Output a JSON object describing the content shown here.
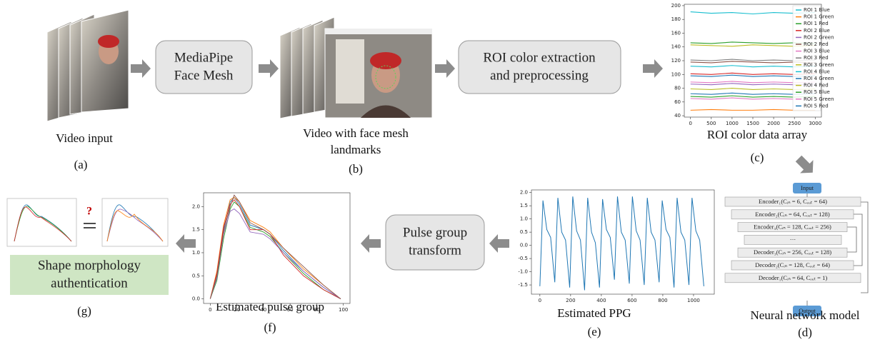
{
  "video_input": {
    "caption": "Video input",
    "label": "(a)"
  },
  "mediapipe_box": {
    "lines": [
      "MediaPipe",
      "Face Mesh"
    ]
  },
  "video_landmarks": {
    "caption": [
      "Video with face mesh",
      "landmarks"
    ],
    "label": "(b)"
  },
  "roi_box": {
    "lines": [
      "ROI color extraction",
      "and preprocessing"
    ]
  },
  "roi_chart": {
    "type": "line",
    "caption": "ROI color data array",
    "label": "(c)",
    "x": [
      0,
      500,
      1000,
      1500,
      2000,
      2500,
      3000
    ],
    "xlim": [
      -150,
      3150
    ],
    "ylim": [
      38,
      202
    ],
    "xticks": [
      0,
      500,
      1000,
      1500,
      2000,
      2500,
      3000
    ],
    "yticks": [
      40,
      60,
      80,
      100,
      120,
      140,
      160,
      180,
      200
    ],
    "legend": "upper right",
    "series": [
      {
        "name": "ROI 1 Blue",
        "color": "#17becf",
        "values": [
          191,
          189,
          190,
          188,
          190,
          189,
          190
        ]
      },
      {
        "name": "ROI 1 Green",
        "color": "#ff7f0e",
        "values": [
          48,
          49,
          48,
          48,
          49,
          48,
          48
        ]
      },
      {
        "name": "ROI 1 Red",
        "color": "#2ca02c",
        "values": [
          146,
          145,
          147,
          146,
          145,
          146,
          145
        ]
      },
      {
        "name": "ROI 2 Blue",
        "color": "#d62728",
        "values": [
          101,
          100,
          102,
          100,
          101,
          100,
          101
        ]
      },
      {
        "name": "ROI 2 Green",
        "color": "#9467bd",
        "values": [
          86,
          85,
          87,
          85,
          86,
          85,
          86
        ]
      },
      {
        "name": "ROI 2 Red",
        "color": "#8c564b",
        "values": [
          118,
          117,
          119,
          118,
          117,
          118,
          117
        ]
      },
      {
        "name": "ROI 3 Blue",
        "color": "#e377c2",
        "values": [
          89,
          88,
          90,
          88,
          89,
          88,
          89
        ]
      },
      {
        "name": "ROI 3 Red",
        "color": "#7f7f7f",
        "values": [
          121,
          120,
          122,
          120,
          121,
          120,
          121
        ]
      },
      {
        "name": "ROI 3 Green",
        "color": "#bcbd22",
        "values": [
          143,
          142,
          141,
          143,
          142,
          141,
          142
        ]
      },
      {
        "name": "ROI 4 Blue",
        "color": "#17becf",
        "values": [
          112,
          111,
          113,
          111,
          112,
          111,
          112
        ]
      },
      {
        "name": "ROI 4 Green",
        "color": "#1f77b4",
        "values": [
          98,
          97,
          99,
          97,
          98,
          97,
          98
        ]
      },
      {
        "name": "ROI 4 Red",
        "color": "#bcbd22",
        "values": [
          79,
          78,
          80,
          78,
          79,
          78,
          79
        ]
      },
      {
        "name": "ROI 5 Blue",
        "color": "#2ca02c",
        "values": [
          68,
          67,
          69,
          67,
          68,
          67,
          68
        ]
      },
      {
        "name": "ROI 5 Green",
        "color": "#e377c2",
        "values": [
          65,
          64,
          66,
          64,
          65,
          64,
          65
        ]
      },
      {
        "name": "ROI 5 Red",
        "color": "#1f77b4",
        "values": [
          72,
          71,
          73,
          71,
          72,
          71,
          72
        ]
      }
    ]
  },
  "network": {
    "caption": "Neural network model",
    "label": "(d)",
    "input": "Input",
    "output": "Output",
    "layers": [
      "Encoder₁(Cᵢₙ = 6, Cₒᵤₜ = 64)",
      "Encoder₂(Cᵢₙ = 64, Cₒᵤₜ = 128)",
      "Encoder₃(Cᵢₙ = 128, Cₒᵤₜ = 256)",
      "···",
      "Decoder₃(Cᵢₙ = 256, Cₒᵤₜ = 128)",
      "Decoder₂(Cᵢₙ = 128, Cₒᵤₜ = 64)",
      "Decoder₁(Cᵢₙ = 64, Cₒᵤₜ = 1)"
    ]
  },
  "ppg_chart": {
    "type": "line",
    "caption": "Estimated PPG",
    "label": "(e)",
    "xlim": [
      -55,
      1135
    ],
    "ylim": [
      -1.85,
      2.1
    ],
    "xticks": [
      0,
      200,
      400,
      600,
      800,
      1000
    ],
    "yticks": [
      {
        "value": 2,
        "label": "2.0"
      },
      1.5,
      {
        "value": 1,
        "label": "1.0"
      },
      0.5,
      {
        "value": 0,
        "label": "0.0"
      },
      -0.5,
      {
        "value": -1,
        "label": "-1.0"
      },
      -1.5
    ],
    "series": [
      {
        "color": "#1f77b4",
        "x": [
          0,
          20,
          45,
          70,
          97,
          117,
          142,
          167,
          194,
          214,
          239,
          264,
          291,
          311,
          336,
          361,
          388,
          408,
          433,
          458,
          485,
          505,
          530,
          555,
          582,
          602,
          627,
          652,
          679,
          699,
          724,
          749,
          776,
          796,
          821,
          846,
          873,
          893,
          918,
          943,
          970,
          990,
          1015,
          1040,
          1067
        ],
        "values": [
          -1.55,
          1.7,
          0.6,
          0.3,
          -1.4,
          1.8,
          0.5,
          0.2,
          -1.6,
          1.85,
          0.55,
          0.2,
          -1.7,
          1.8,
          0.5,
          0.1,
          -1.6,
          1.75,
          0.6,
          0.3,
          -1.3,
          1.85,
          0.5,
          0.2,
          -1.45,
          1.85,
          0.55,
          0.2,
          -1.5,
          1.8,
          0.5,
          0.2,
          -1.4,
          1.7,
          0.6,
          0.3,
          -1.6,
          1.8,
          0.5,
          0.2,
          -1.5,
          1.8,
          0.55,
          0.2,
          -1.55
        ]
      }
    ]
  },
  "pulse_box": {
    "lines": [
      "Pulse group",
      "transform"
    ]
  },
  "pulse_chart": {
    "type": "line",
    "caption": "Estimated pulse group",
    "label": "(f)",
    "x": [
      0,
      5,
      10,
      15,
      18,
      22,
      30,
      40,
      45,
      55,
      70,
      85,
      98
    ],
    "xlim": [
      -5,
      105
    ],
    "ylim": [
      -0.1,
      2.3
    ],
    "xticks": [
      0,
      20,
      40,
      60,
      80,
      100
    ],
    "yticks": [
      {
        "value": 0,
        "label": "0.0"
      },
      0.5,
      {
        "value": 1,
        "label": "1.0"
      },
      1.5,
      {
        "value": 2,
        "label": "2.0"
      }
    ],
    "series": [
      {
        "color": "#1f77b4",
        "values": [
          0,
          0.5,
          1.5,
          2.1,
          2.2,
          2.05,
          1.6,
          1.5,
          1.4,
          1.05,
          0.6,
          0.25,
          0
        ]
      },
      {
        "color": "#ff7f0e",
        "values": [
          0,
          0.6,
          1.6,
          2.15,
          2.2,
          2.1,
          1.7,
          1.55,
          1.45,
          1.1,
          0.65,
          0.3,
          0
        ]
      },
      {
        "color": "#2ca02c",
        "values": [
          0,
          0.4,
          1.3,
          1.95,
          2.1,
          2.0,
          1.55,
          1.45,
          1.35,
          1.0,
          0.55,
          0.2,
          0
        ]
      },
      {
        "color": "#d62728",
        "values": [
          0,
          0.55,
          1.55,
          2.05,
          2.15,
          2.0,
          1.5,
          1.5,
          1.4,
          0.95,
          0.5,
          0.2,
          0
        ]
      },
      {
        "color": "#9467bd",
        "values": [
          0,
          0.45,
          1.4,
          1.9,
          1.95,
          1.85,
          1.45,
          1.4,
          1.3,
          1.0,
          0.6,
          0.25,
          0
        ]
      },
      {
        "color": "#8c564b",
        "values": [
          0,
          0.5,
          1.45,
          2.0,
          2.25,
          2.1,
          1.65,
          1.5,
          1.4,
          1.1,
          0.7,
          0.3,
          0
        ]
      }
    ]
  },
  "authentication": {
    "lines": [
      "Shape morphology",
      "authentication"
    ],
    "question": "?",
    "label": "(g)"
  }
}
